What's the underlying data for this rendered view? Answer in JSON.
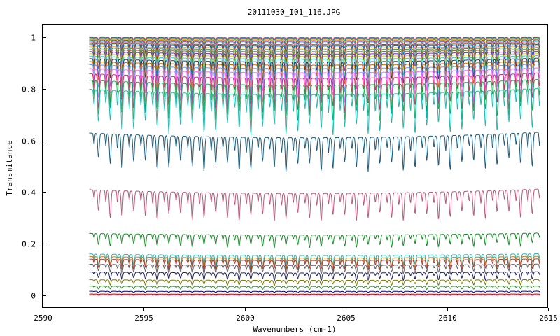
{
  "chart_data": {
    "type": "line",
    "title": "20111030_I01_116.JPG",
    "xlabel": "Wavenumbers (cm-1)",
    "ylabel": "Transmitance",
    "xlim": [
      2590,
      2615
    ],
    "ylim": [
      -0.05,
      1.05
    ],
    "x_ticks": [
      2590,
      2595,
      2600,
      2605,
      2610,
      2615
    ],
    "y_ticks": [
      0,
      0.2,
      0.4,
      0.6,
      0.8,
      1
    ],
    "x_tick_labels": [
      "2590",
      "2595",
      "2600",
      "2605",
      "2610",
      "2615"
    ],
    "y_tick_labels": [
      "0",
      "0.2",
      "0.4",
      "0.6",
      "0.8",
      "1"
    ],
    "grid": false,
    "legend": "none",
    "x_range": [
      2592.3,
      2614.6
    ],
    "dip_spacing": 0.58,
    "series": [
      {
        "base": 1.0,
        "depth": 0.004,
        "color": "#cc3333"
      },
      {
        "base": 0.998,
        "depth": 0.008,
        "color": "#3366cc"
      },
      {
        "base": 0.996,
        "depth": 0.012,
        "color": "#33aa33"
      },
      {
        "base": 0.993,
        "depth": 0.016,
        "color": "#ffaa00"
      },
      {
        "base": 0.99,
        "depth": 0.02,
        "color": "#aa33aa"
      },
      {
        "base": 0.986,
        "depth": 0.025,
        "color": "#00aaaa"
      },
      {
        "base": 0.982,
        "depth": 0.03,
        "color": "#ff66aa"
      },
      {
        "base": 0.977,
        "depth": 0.036,
        "color": "#666600"
      },
      {
        "base": 0.972,
        "depth": 0.042,
        "color": "#0066ff"
      },
      {
        "base": 0.966,
        "depth": 0.048,
        "color": "#ff9933"
      },
      {
        "base": 0.96,
        "depth": 0.055,
        "color": "#339966"
      },
      {
        "base": 0.953,
        "depth": 0.062,
        "color": "#996633"
      },
      {
        "base": 0.945,
        "depth": 0.07,
        "color": "#6633cc"
      },
      {
        "base": 0.937,
        "depth": 0.078,
        "color": "#cccc33"
      },
      {
        "base": 0.928,
        "depth": 0.087,
        "color": "#33cccc"
      },
      {
        "base": 0.918,
        "depth": 0.096,
        "color": "#333366"
      },
      {
        "base": 0.907,
        "depth": 0.105,
        "color": "#cc6600"
      },
      {
        "base": 0.895,
        "depth": 0.115,
        "color": "#6699ff"
      },
      {
        "base": 0.88,
        "depth": 0.125,
        "color": "#ff66ff"
      },
      {
        "base": 0.86,
        "depth": 0.135,
        "color": "#cc3366"
      },
      {
        "base": 0.835,
        "depth": 0.145,
        "color": "#22aa55"
      },
      {
        "base": 0.8,
        "depth": 0.16,
        "color": "#22b8b0"
      },
      {
        "base": 0.63,
        "depth": 0.135,
        "color": "#1a5a7a"
      },
      {
        "base": 0.41,
        "depth": 0.11,
        "color": "#b85878"
      },
      {
        "base": 0.24,
        "depth": 0.05,
        "color": "#1a8a2a"
      },
      {
        "base": 0.16,
        "depth": 0.045,
        "color": "#22b8b8"
      },
      {
        "base": 0.15,
        "depth": 0.043,
        "color": "#c87a20"
      },
      {
        "base": 0.14,
        "depth": 0.04,
        "color": "#a04040"
      },
      {
        "base": 0.12,
        "depth": 0.035,
        "color": "#606060"
      },
      {
        "base": 0.09,
        "depth": 0.03,
        "color": "#202060"
      },
      {
        "base": 0.06,
        "depth": 0.02,
        "color": "#7a7a00"
      },
      {
        "base": 0.035,
        "depth": 0.012,
        "color": "#2a9a2a"
      },
      {
        "base": 0.015,
        "depth": 0.005,
        "color": "#000088"
      },
      {
        "base": 0.004,
        "depth": 0.002,
        "color": "#aa0000"
      },
      {
        "base": 0.0,
        "depth": 0.001,
        "color": "#aa00aa"
      }
    ]
  }
}
